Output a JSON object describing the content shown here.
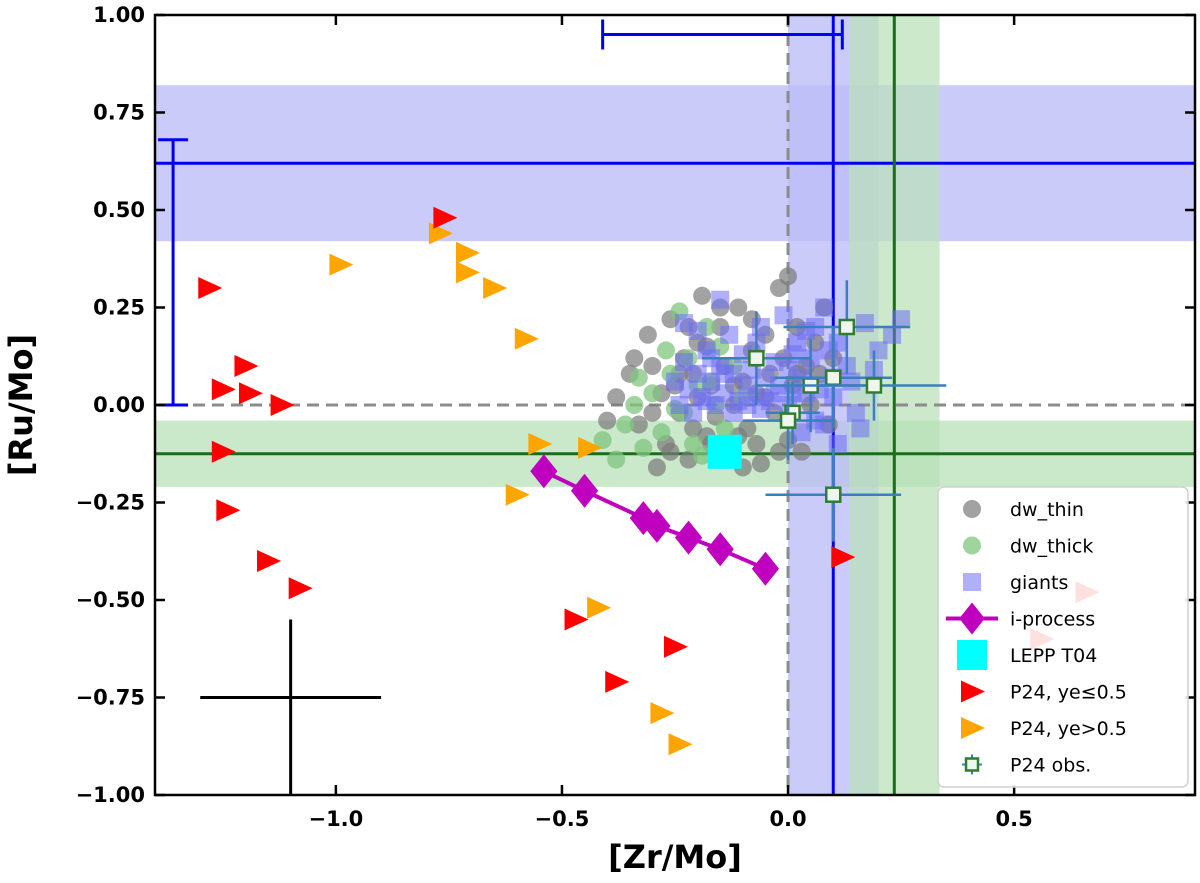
{
  "chart_data": {
    "type": "scatter",
    "xlabel": "[Zr/Mo]",
    "ylabel": "[Ru/Mo]",
    "xlim": [
      -1.4,
      0.9
    ],
    "ylim": [
      -1.0,
      1.0
    ],
    "xticks": [
      -1.0,
      -0.5,
      0.0,
      0.5
    ],
    "xtick_labels": [
      "−1.0",
      "−0.5",
      "0.0",
      "0.5"
    ],
    "yticks": [
      -1.0,
      -0.75,
      -0.5,
      -0.25,
      0.0,
      0.25,
      0.5,
      0.75,
      1.0
    ],
    "ytick_labels": [
      "−1.00",
      "−0.75",
      "−0.50",
      "−0.25",
      "0.00",
      "0.25",
      "0.50",
      "0.75",
      "1.00"
    ],
    "colors": {
      "dw_thin": "#7a7a7a",
      "dw_thick": "#7fc67f",
      "giants": "#6e6ef5",
      "i_process": "#bf00bf",
      "lepp": "#00ffff",
      "p24_low": "#ff0000",
      "p24_high": "#ffa500",
      "p24_obs_edge": "#2e7d32",
      "p24_err": "#3a7fbf",
      "blue_line": "#0000ee",
      "green_line": "#1a6e1a",
      "blue_band": "#bcbcf7",
      "green_band": "#b8e0b8"
    },
    "reference_lines": {
      "blue_horizontal_y": 0.62,
      "blue_band_y": [
        0.42,
        0.82
      ],
      "blue_vertical_x": 0.1,
      "blue_band_x": [
        0.0,
        0.2
      ],
      "green_horizontal_y": -0.125,
      "green_band_y": [
        -0.21,
        -0.04
      ],
      "green_vertical_x": 0.235,
      "green_band_x": [
        0.135,
        0.335
      ],
      "dashed_x": 0.0,
      "dashed_y": 0.0,
      "blue_xerr": {
        "y": 0.95,
        "x_from": -0.41,
        "x_to": 0.12
      },
      "blue_yerr": {
        "x": -1.36,
        "y_from": 0.0,
        "y_to": 0.68
      },
      "typical_error": {
        "x": -1.1,
        "y": -0.75,
        "x_from": -1.3,
        "x_to": -0.9,
        "y_from": -1.2,
        "y_to": -0.55
      }
    },
    "series": [
      {
        "name": "dw_thin",
        "marker": "circle",
        "points": [
          [
            -0.38,
            0.02
          ],
          [
            -0.35,
            0.08
          ],
          [
            -0.33,
            -0.05
          ],
          [
            -0.31,
            0.18
          ],
          [
            -0.3,
            0.1
          ],
          [
            -0.28,
            0.03
          ],
          [
            -0.27,
            -0.1
          ],
          [
            -0.26,
            0.22
          ],
          [
            -0.25,
            0.05
          ],
          [
            -0.24,
            -0.02
          ],
          [
            -0.23,
            0.12
          ],
          [
            -0.22,
            -0.14
          ],
          [
            -0.21,
            0.08
          ],
          [
            -0.2,
            0.02
          ],
          [
            -0.19,
            0.28
          ],
          [
            -0.18,
            -0.08
          ],
          [
            -0.18,
            0.15
          ],
          [
            -0.17,
            0.05
          ],
          [
            -0.16,
            -0.03
          ],
          [
            -0.15,
            0.2
          ],
          [
            -0.14,
            0.1
          ],
          [
            -0.13,
            -0.12
          ],
          [
            -0.12,
            0.0
          ],
          [
            -0.11,
            0.25
          ],
          [
            -0.1,
            0.06
          ],
          [
            -0.09,
            -0.06
          ],
          [
            -0.08,
            0.14
          ],
          [
            -0.07,
            0.03
          ],
          [
            -0.06,
            -0.15
          ],
          [
            -0.05,
            0.18
          ],
          [
            -0.04,
            0.08
          ],
          [
            -0.03,
            -0.02
          ],
          [
            -0.02,
            0.3
          ],
          [
            -0.01,
            0.12
          ],
          [
            0.0,
            -0.09
          ],
          [
            0.0,
            0.33
          ],
          [
            0.01,
            0.05
          ],
          [
            0.02,
            0.2
          ],
          [
            0.03,
            -0.12
          ],
          [
            0.04,
            0.1
          ],
          [
            0.05,
            0.0
          ],
          [
            0.06,
            0.16
          ],
          [
            0.08,
            0.25
          ],
          [
            0.09,
            -0.05
          ],
          [
            0.1,
            0.12
          ],
          [
            -0.29,
            -0.16
          ],
          [
            -0.34,
            0.12
          ],
          [
            -0.2,
            0.16
          ],
          [
            -0.14,
            -0.14
          ],
          [
            -0.07,
            -0.1
          ],
          [
            -0.12,
            0.05
          ],
          [
            -0.22,
            0.2
          ],
          [
            -0.26,
            -0.12
          ],
          [
            -0.4,
            -0.04
          ],
          [
            -0.1,
            -0.16
          ],
          [
            0.07,
            0.08
          ],
          [
            -0.02,
            -0.12
          ],
          [
            -0.15,
            0.25
          ],
          [
            -0.05,
            0.02
          ],
          [
            -0.3,
            -0.02
          ],
          [
            -0.24,
            0.08
          ],
          [
            -0.17,
            -0.1
          ],
          [
            -0.08,
            0.22
          ],
          [
            0.02,
            0.08
          ],
          [
            -0.11,
            -0.08
          ],
          [
            -0.21,
            -0.06
          ]
        ]
      },
      {
        "name": "dw_thick",
        "marker": "circle",
        "points": [
          [
            -0.41,
            -0.09
          ],
          [
            -0.38,
            -0.14
          ],
          [
            -0.36,
            -0.05
          ],
          [
            -0.34,
            0.0
          ],
          [
            -0.32,
            -0.11
          ],
          [
            -0.3,
            0.03
          ],
          [
            -0.28,
            -0.07
          ],
          [
            -0.26,
            0.08
          ],
          [
            -0.24,
            0.24
          ],
          [
            -0.23,
            -0.02
          ],
          [
            -0.22,
            0.12
          ],
          [
            -0.2,
            0.05
          ],
          [
            -0.19,
            -0.13
          ],
          [
            -0.18,
            0.2
          ],
          [
            -0.16,
            0.0
          ],
          [
            -0.15,
            0.15
          ],
          [
            -0.14,
            -0.06
          ],
          [
            -0.12,
            0.1
          ],
          [
            -0.27,
            0.14
          ],
          [
            -0.33,
            0.07
          ],
          [
            -0.25,
            -0.01
          ],
          [
            -0.17,
            0.06
          ],
          [
            -0.21,
            -0.1
          ],
          [
            -0.1,
            0.02
          ]
        ]
      },
      {
        "name": "giants",
        "marker": "square",
        "points": [
          [
            -0.25,
            0.06
          ],
          [
            -0.24,
            0.0
          ],
          [
            -0.23,
            0.11
          ],
          [
            -0.22,
            0.04
          ],
          [
            -0.21,
            -0.02
          ],
          [
            -0.2,
            0.08
          ],
          [
            -0.19,
            0.02
          ],
          [
            -0.18,
            0.14
          ],
          [
            -0.17,
            0.06
          ],
          [
            -0.16,
            0.0
          ],
          [
            -0.15,
            0.1
          ],
          [
            -0.14,
            0.03
          ],
          [
            -0.13,
            0.18
          ],
          [
            -0.12,
            0.08
          ],
          [
            -0.11,
            0.01
          ],
          [
            -0.1,
            0.13
          ],
          [
            -0.09,
            0.05
          ],
          [
            -0.08,
            0.09
          ],
          [
            -0.07,
            0.02
          ],
          [
            -0.06,
            0.2
          ],
          [
            -0.05,
            0.07
          ],
          [
            -0.04,
            0.01
          ],
          [
            -0.03,
            0.11
          ],
          [
            -0.02,
            0.05
          ],
          [
            -0.01,
            0.23
          ],
          [
            0.0,
            0.09
          ],
          [
            0.01,
            0.03
          ],
          [
            0.02,
            0.16
          ],
          [
            0.03,
            0.07
          ],
          [
            0.04,
            0.19
          ],
          [
            0.05,
            0.12
          ],
          [
            0.06,
            0.2
          ],
          [
            0.07,
            0.04
          ],
          [
            0.08,
            0.25
          ],
          [
            0.09,
            0.14
          ],
          [
            0.1,
            0.07
          ],
          [
            0.11,
            0.16
          ],
          [
            0.13,
            0.1
          ],
          [
            0.15,
            -0.02
          ],
          [
            0.17,
            0.21
          ],
          [
            0.2,
            0.14
          ],
          [
            0.23,
            0.18
          ],
          [
            0.25,
            0.22
          ],
          [
            0.0,
            0.0
          ],
          [
            -0.03,
            0.03
          ],
          [
            0.06,
            -0.04
          ],
          [
            0.1,
            0.02
          ],
          [
            0.14,
            0.06
          ],
          [
            0.19,
            0.09
          ],
          [
            -0.15,
            0.27
          ],
          [
            -0.2,
            0.19
          ],
          [
            -0.06,
            -0.01
          ],
          [
            -0.12,
            -0.02
          ],
          [
            -0.17,
            0.12
          ],
          [
            0.03,
            -0.07
          ],
          [
            0.08,
            -0.05
          ],
          [
            0.11,
            -0.1
          ],
          [
            0.16,
            -0.06
          ],
          [
            -0.23,
            0.21
          ],
          [
            0.04,
            0.03
          ],
          [
            -0.09,
            0.0
          ],
          [
            -0.14,
            0.08
          ],
          [
            -0.07,
            0.16
          ],
          [
            0.01,
            0.13
          ],
          [
            -0.18,
            0.01
          ]
        ]
      },
      {
        "name": "i-process",
        "marker": "diamond",
        "line": true,
        "points": [
          [
            -0.54,
            -0.17
          ],
          [
            -0.45,
            -0.22
          ],
          [
            -0.32,
            -0.29
          ],
          [
            -0.29,
            -0.31
          ],
          [
            -0.22,
            -0.34
          ],
          [
            -0.15,
            -0.37
          ],
          [
            -0.05,
            -0.42
          ]
        ]
      },
      {
        "name": "LEPP T04",
        "marker": "square",
        "points": [
          [
            -0.14,
            -0.12
          ]
        ]
      },
      {
        "name": "P24, ye≤0.5",
        "marker": "triangle-right",
        "points": [
          [
            -1.28,
            0.3
          ],
          [
            -1.25,
            0.04
          ],
          [
            -1.2,
            0.1
          ],
          [
            -1.19,
            0.03
          ],
          [
            -1.12,
            0.0
          ],
          [
            -1.25,
            -0.12
          ],
          [
            -1.24,
            -0.27
          ],
          [
            -1.15,
            -0.4
          ],
          [
            -1.08,
            -0.47
          ],
          [
            -0.76,
            0.48
          ],
          [
            -0.47,
            -0.55
          ],
          [
            -0.38,
            -0.71
          ],
          [
            -0.25,
            -0.62
          ],
          [
            0.12,
            -0.39
          ],
          [
            0.66,
            -0.48
          ],
          [
            0.56,
            -0.6
          ]
        ]
      },
      {
        "name": "P24, ye>0.5",
        "marker": "triangle-right",
        "points": [
          [
            -0.99,
            0.36
          ],
          [
            -0.77,
            0.44
          ],
          [
            -0.71,
            0.39
          ],
          [
            -0.71,
            0.34
          ],
          [
            -0.65,
            0.3
          ],
          [
            -0.58,
            0.17
          ],
          [
            -0.55,
            -0.1
          ],
          [
            -0.44,
            -0.11
          ],
          [
            -0.6,
            -0.23
          ],
          [
            -0.42,
            -0.52
          ],
          [
            -0.28,
            -0.79
          ],
          [
            -0.24,
            -0.87
          ]
        ]
      },
      {
        "name": "P24 obs.",
        "marker": "open-square",
        "points": [
          [
            -0.07,
            0.12,
            0.12,
            0.12
          ],
          [
            0.05,
            0.05,
            0.12,
            0.12
          ],
          [
            0.1,
            0.07,
            0.13,
            0.13
          ],
          [
            0.13,
            0.2,
            0.14,
            0.12
          ],
          [
            0.19,
            0.05,
            0.16,
            0.09
          ],
          [
            0.01,
            -0.02,
            0.06,
            0.08
          ],
          [
            0.0,
            -0.04,
            0.1,
            0.1
          ],
          [
            0.1,
            -0.23,
            0.15,
            0.12
          ]
        ]
      }
    ],
    "legend": {
      "placement": "lower-right",
      "entries": [
        "dw_thin",
        "dw_thick",
        "giants",
        "i-process",
        "LEPP T04",
        "P24, ye≤0.5",
        "P24, ye>0.5",
        "P24 obs."
      ]
    }
  }
}
